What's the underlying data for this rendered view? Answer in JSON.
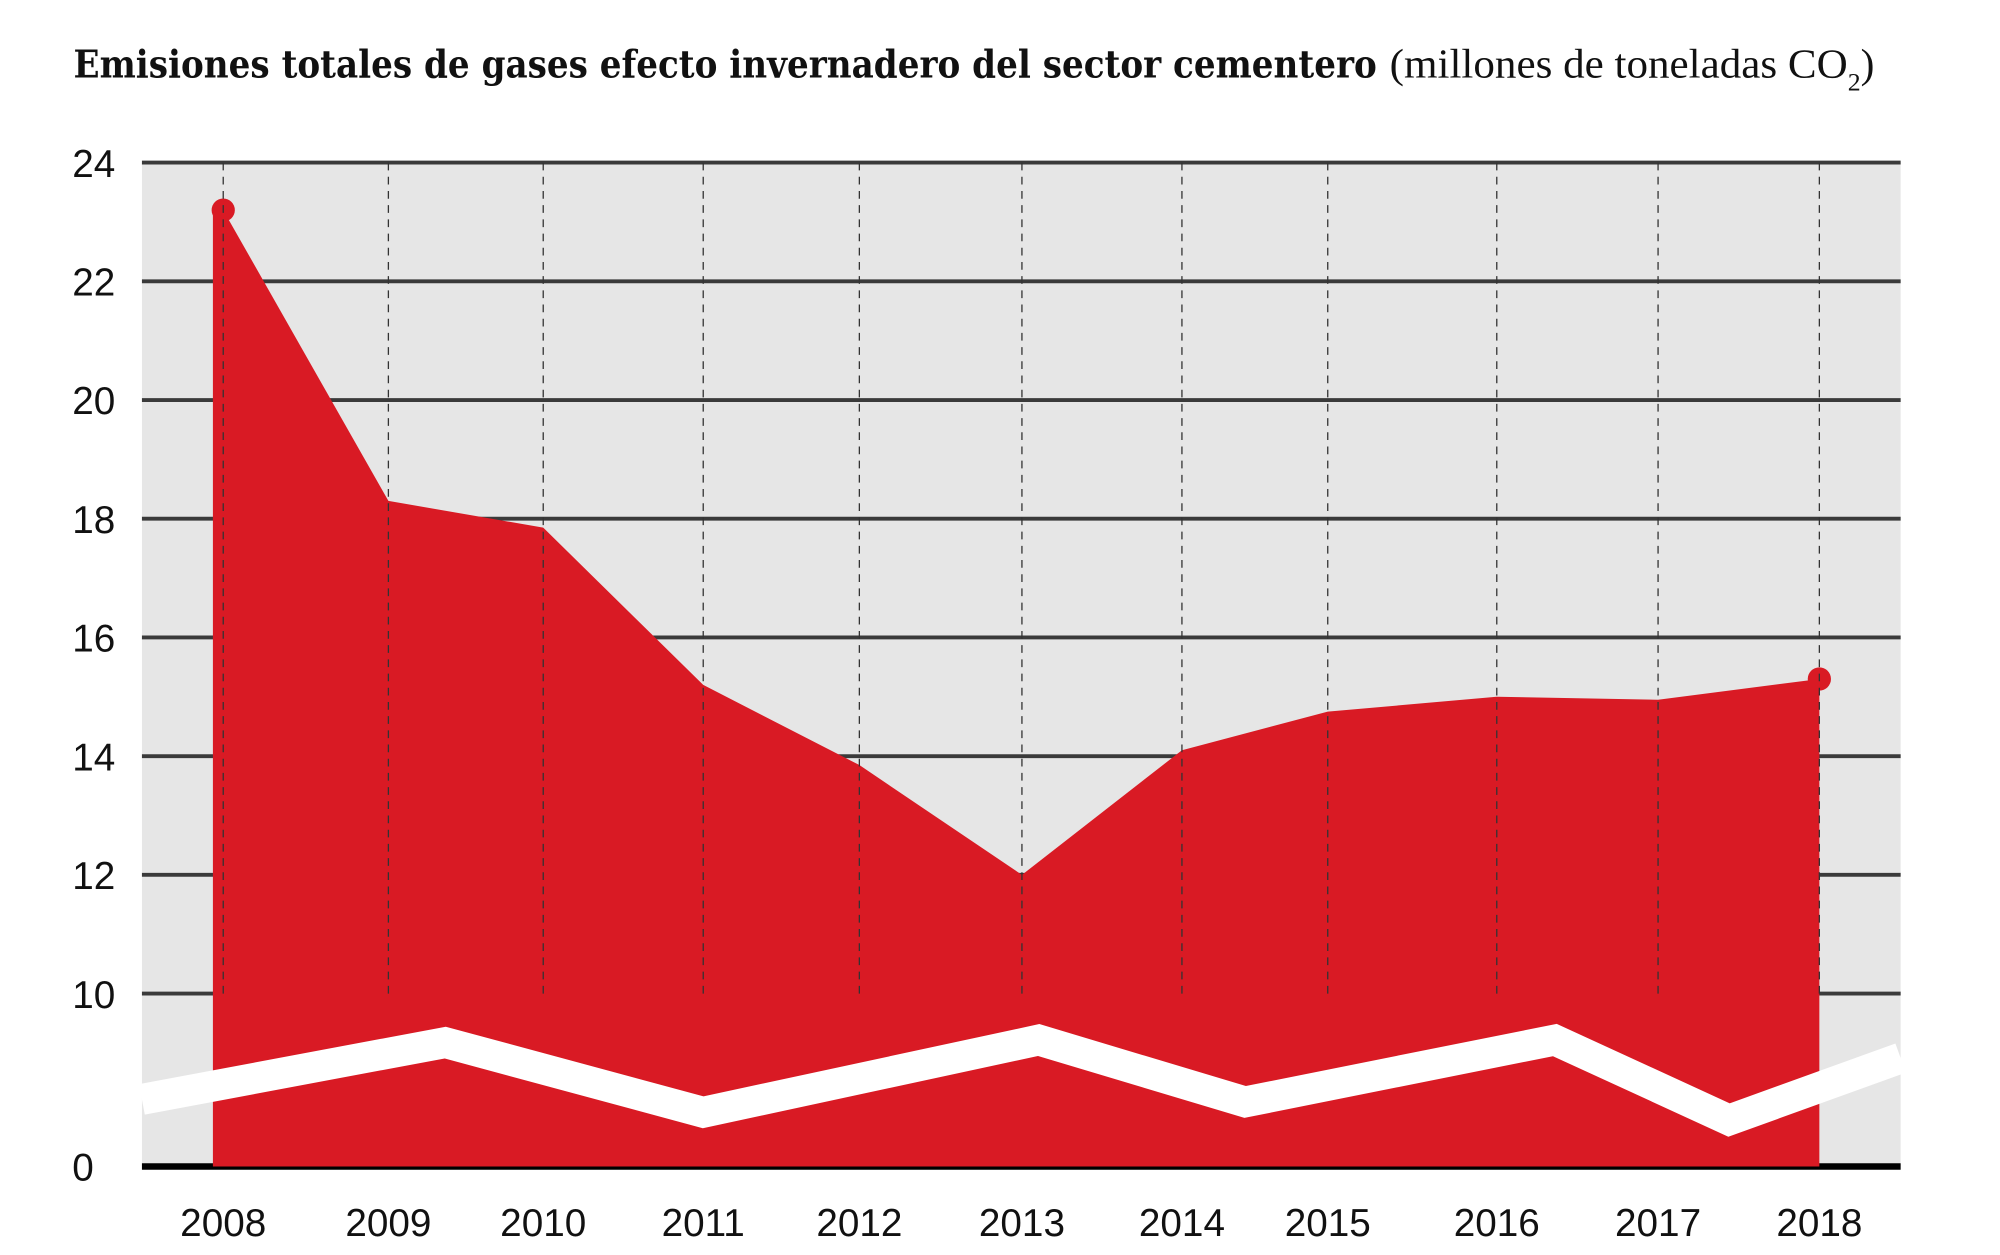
{
  "title": {
    "bold": "Emisiones totales de gases efecto invernadero del sector cementero",
    "regular": "(millones de toneladas CO",
    "subscript": "2",
    "close": ")"
  },
  "colors": {
    "fill": "#d91a24",
    "plot_bg": "#e6e6e6",
    "grid": "#3a3a3a",
    "break": "#ffffff"
  },
  "chart_data": {
    "type": "area",
    "title": "Emisiones totales de gases efecto invernadero del sector cementero (millones de toneladas CO2)",
    "xlabel": "",
    "ylabel": "",
    "categories": [
      "2008",
      "2009",
      "2010",
      "2011",
      "2012",
      "2013",
      "2014",
      "2015",
      "2016",
      "2017",
      "2018"
    ],
    "values": [
      23.2,
      18.3,
      17.85,
      15.2,
      13.85,
      12.0,
      14.1,
      14.75,
      15.0,
      14.95,
      15.3
    ],
    "yticks": [
      "24",
      "22",
      "20",
      "18",
      "16",
      "14",
      "12",
      "10",
      "0"
    ],
    "ylim": [
      0,
      24
    ],
    "axis_break": [
      0,
      10
    ],
    "grid": true
  }
}
